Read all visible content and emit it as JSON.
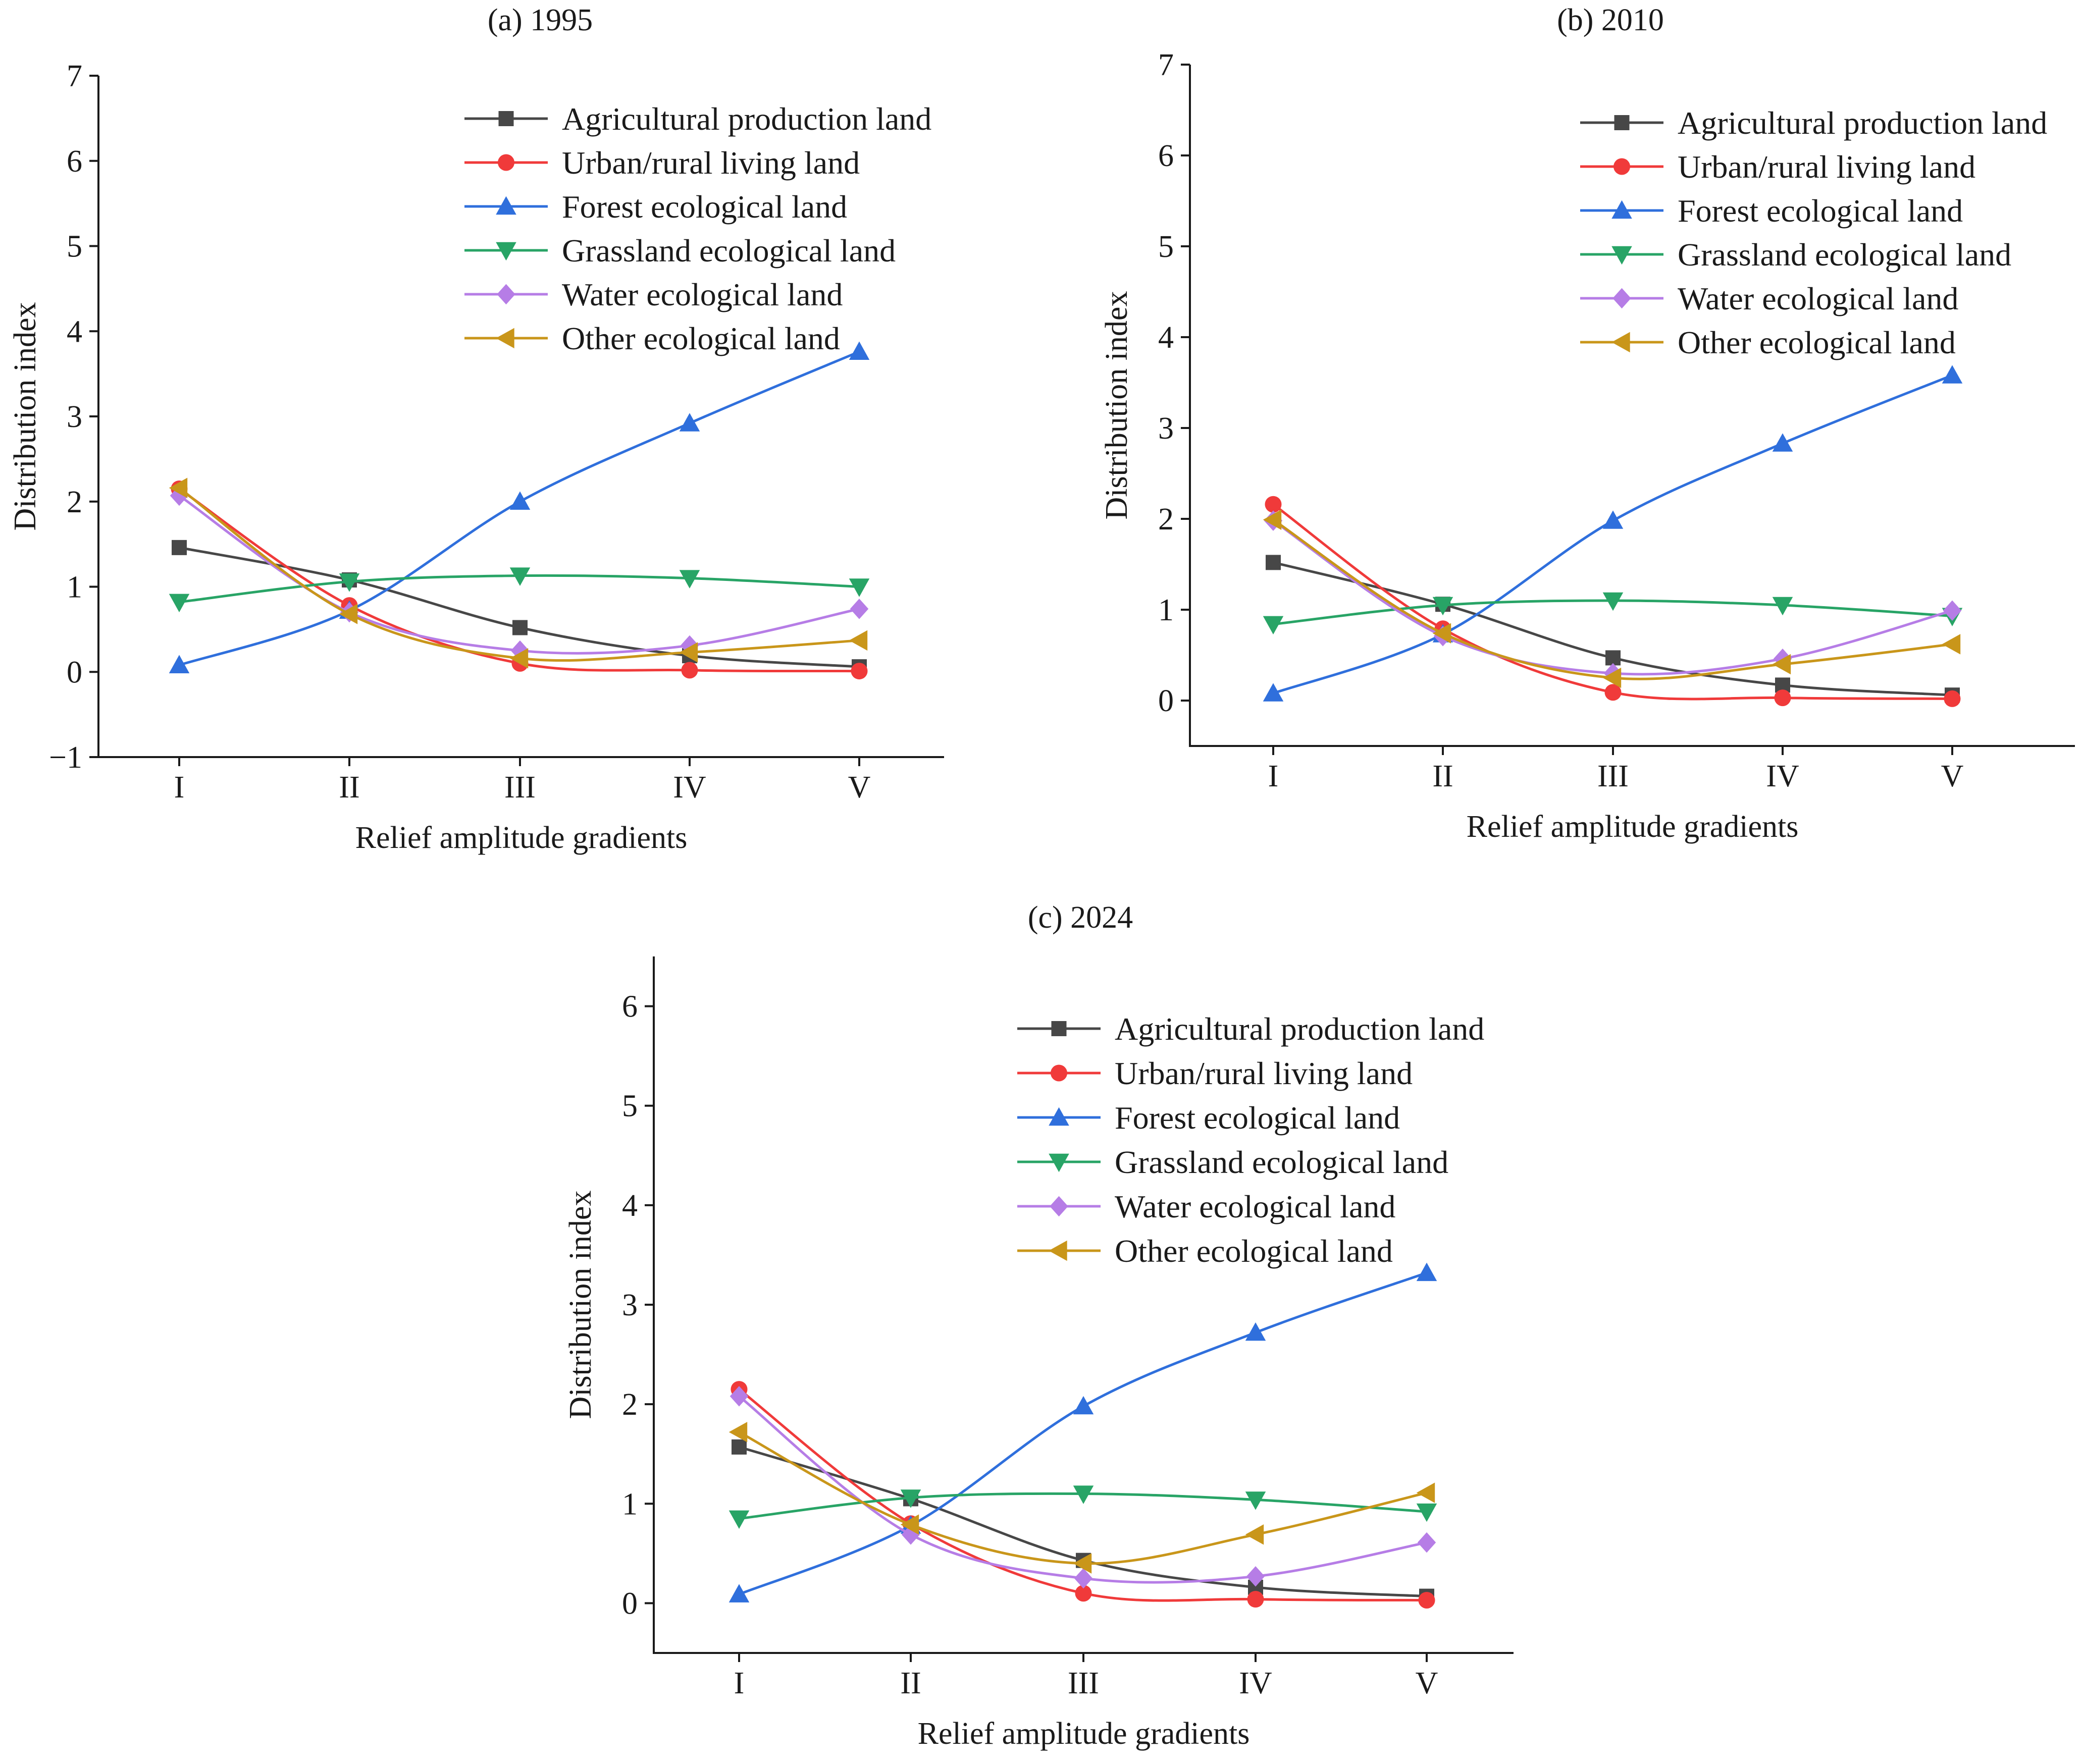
{
  "chart_data": [
    {
      "type": "line",
      "title": "(a) 1995",
      "xlabel": "Relief amplitude gradients",
      "ylabel": "Distribution index",
      "categories": [
        "I",
        "II",
        "III",
        "IV",
        "V"
      ],
      "ylim": [
        -1,
        7
      ],
      "yticks": [
        -1,
        0,
        1,
        2,
        3,
        4,
        5,
        6,
        7
      ],
      "yticklabels": [
        "−1",
        "0",
        "1",
        "2",
        "3",
        "4",
        "5",
        "6",
        "7"
      ],
      "legend_position": "top-right",
      "grid": false,
      "series": [
        {
          "name": "Agricultural production land",
          "marker": "square",
          "color": "#474747",
          "values": [
            1.46,
            1.08,
            0.52,
            0.19,
            0.06
          ]
        },
        {
          "name": "Urban/rural living land",
          "marker": "circle",
          "color": "#f03a3a",
          "values": [
            2.15,
            0.78,
            0.1,
            0.02,
            0.01
          ]
        },
        {
          "name": "Forest ecological land",
          "marker": "triangle-up",
          "color": "#2f6fdc",
          "values": [
            0.08,
            0.72,
            2.0,
            2.92,
            3.76
          ]
        },
        {
          "name": "Grassland ecological land",
          "marker": "triangle-down",
          "color": "#28a466",
          "values": [
            0.82,
            1.06,
            1.13,
            1.1,
            1.0
          ]
        },
        {
          "name": "Water ecological land",
          "marker": "diamond",
          "color": "#b67de6",
          "values": [
            2.07,
            0.7,
            0.25,
            0.31,
            0.74
          ]
        },
        {
          "name": "Other ecological land",
          "marker": "triangle-left",
          "color": "#c9961a",
          "values": [
            2.16,
            0.68,
            0.16,
            0.23,
            0.37
          ]
        }
      ]
    },
    {
      "type": "line",
      "title": "(b) 2010",
      "xlabel": "Relief amplitude gradients",
      "ylabel": "Distribution index",
      "categories": [
        "I",
        "II",
        "III",
        "IV",
        "V"
      ],
      "ylim": [
        -0.5,
        7
      ],
      "yticks": [
        0,
        1,
        2,
        3,
        4,
        5,
        6,
        7
      ],
      "yticklabels": [
        "0",
        "1",
        "2",
        "3",
        "4",
        "5",
        "6",
        "7"
      ],
      "legend_position": "top-right",
      "grid": false,
      "series": [
        {
          "name": "Agricultural production land",
          "marker": "square",
          "color": "#474747",
          "values": [
            1.52,
            1.06,
            0.47,
            0.17,
            0.06
          ]
        },
        {
          "name": "Urban/rural living land",
          "marker": "circle",
          "color": "#f03a3a",
          "values": [
            2.16,
            0.79,
            0.09,
            0.03,
            0.02
          ]
        },
        {
          "name": "Forest ecological land",
          "marker": "triangle-up",
          "color": "#2f6fdc",
          "values": [
            0.08,
            0.73,
            1.98,
            2.83,
            3.58
          ]
        },
        {
          "name": "Grassland ecological land",
          "marker": "triangle-down",
          "color": "#28a466",
          "values": [
            0.84,
            1.05,
            1.1,
            1.05,
            0.93
          ]
        },
        {
          "name": "Water ecological land",
          "marker": "diamond",
          "color": "#b67de6",
          "values": [
            1.98,
            0.71,
            0.3,
            0.46,
            0.99
          ]
        },
        {
          "name": "Other ecological land",
          "marker": "triangle-left",
          "color": "#c9961a",
          "values": [
            1.99,
            0.74,
            0.25,
            0.4,
            0.62
          ]
        }
      ]
    },
    {
      "type": "line",
      "title": "(c) 2024",
      "xlabel": "Relief amplitude gradients",
      "ylabel": "Distribution index",
      "categories": [
        "I",
        "II",
        "III",
        "IV",
        "V"
      ],
      "ylim": [
        -0.5,
        6.5
      ],
      "yticks": [
        0,
        1,
        2,
        3,
        4,
        5,
        6
      ],
      "yticklabels": [
        "0",
        "1",
        "2",
        "3",
        "4",
        "5",
        "6"
      ],
      "legend_position": "top-right",
      "grid": false,
      "series": [
        {
          "name": "Agricultural production land",
          "marker": "square",
          "color": "#474747",
          "values": [
            1.57,
            1.05,
            0.43,
            0.16,
            0.07
          ]
        },
        {
          "name": "Urban/rural living land",
          "marker": "circle",
          "color": "#f03a3a",
          "values": [
            2.15,
            0.8,
            0.1,
            0.04,
            0.03
          ]
        },
        {
          "name": "Forest ecological land",
          "marker": "triangle-up",
          "color": "#2f6fdc",
          "values": [
            0.09,
            0.78,
            1.98,
            2.72,
            3.32
          ]
        },
        {
          "name": "Grassland ecological land",
          "marker": "triangle-down",
          "color": "#28a466",
          "values": [
            0.85,
            1.06,
            1.1,
            1.04,
            0.92
          ]
        },
        {
          "name": "Water ecological land",
          "marker": "diamond",
          "color": "#b67de6",
          "values": [
            2.08,
            0.69,
            0.25,
            0.27,
            0.61
          ]
        },
        {
          "name": "Other ecological land",
          "marker": "triangle-left",
          "color": "#c9961a",
          "values": [
            1.72,
            0.79,
            0.4,
            0.69,
            1.11
          ]
        }
      ]
    }
  ]
}
